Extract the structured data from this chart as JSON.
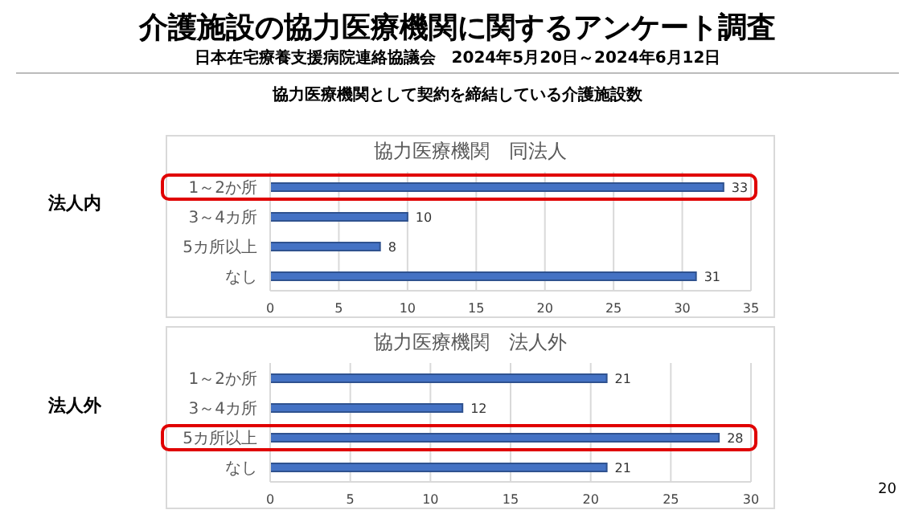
{
  "chart_data": [
    {
      "type": "bar",
      "orientation": "horizontal",
      "title": "協力医療機関　同法人",
      "categories": [
        "1～2か所",
        "3～4カ所",
        "5カ所以上",
        "なし"
      ],
      "values": [
        33,
        10,
        8,
        31
      ],
      "color": "#4472c4",
      "xlim": [
        0,
        35
      ],
      "xticks": [
        0,
        5,
        10,
        15,
        20,
        25,
        30,
        35
      ],
      "grid": "x",
      "data_labels": true,
      "annotations": [
        "介護施設の協力医療機関に関するアンケート調査",
        "日本在宅療養支援病院連絡協議会　2024年5月20日～2024年6月12日",
        "協力医療機関として契約を締結している介護施設数",
        "法人内",
        "20"
      ]
    },
    {
      "type": "bar",
      "orientation": "horizontal",
      "title": "協力医療機関　法人外",
      "categories": [
        "1～2か所",
        "3～4カ所",
        "5カ所以上",
        "なし"
      ],
      "values": [
        21,
        12,
        28,
        21
      ],
      "color": "#4472c4",
      "xlim": [
        0,
        30
      ],
      "xticks": [
        0,
        5,
        10,
        15,
        20,
        25,
        30
      ],
      "grid": "x",
      "data_labels": true,
      "annotations": [
        "法人外"
      ]
    }
  ]
}
